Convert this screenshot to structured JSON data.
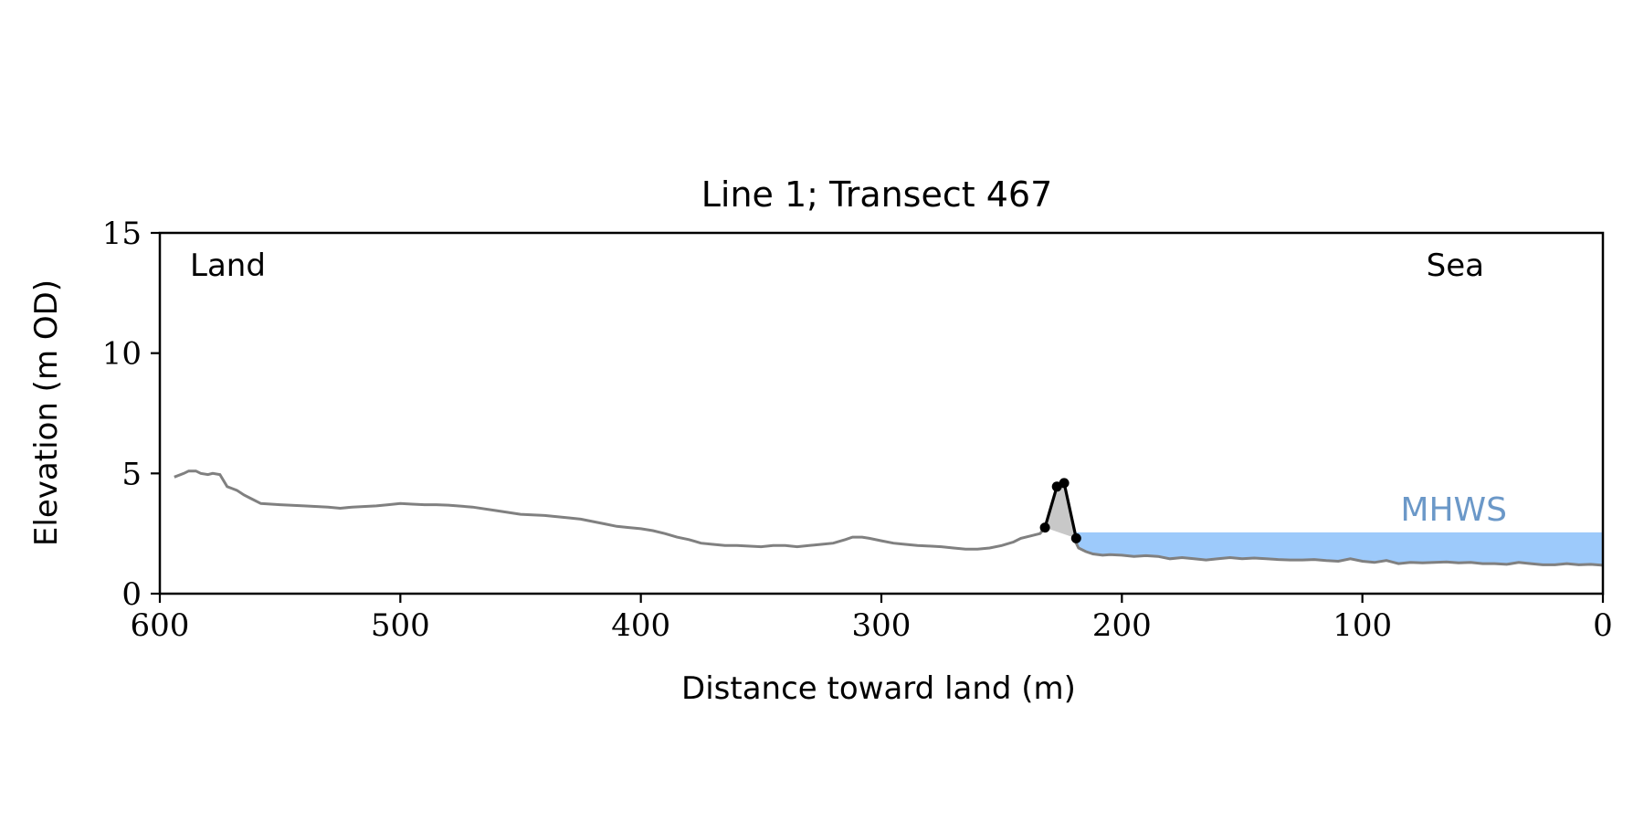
{
  "chart_data": {
    "type": "line",
    "title": "Line 1; Transect 467",
    "xlabel": "Distance toward land (m)",
    "ylabel": "Elevation (m OD)",
    "xlim": [
      600,
      0
    ],
    "ylim": [
      0,
      15
    ],
    "x_ticks": [
      600,
      500,
      400,
      300,
      200,
      100,
      0
    ],
    "y_ticks": [
      0,
      5,
      10,
      15
    ],
    "grid": false,
    "annotations": {
      "land_label": "Land",
      "sea_label": "Sea",
      "mhws_label": "MHWS"
    },
    "mhws_level": 2.55,
    "colors": {
      "profile": "#808080",
      "dune": "#000000",
      "dune_fill": "#c8c8c8",
      "water_fill": "#9dcafb",
      "mhws_text": "#6b98c8",
      "axes": "#000000"
    },
    "series": [
      {
        "role": "profile",
        "x": [
          594,
          590,
          588,
          585,
          583,
          580,
          578,
          575,
          572,
          568,
          565,
          562,
          558,
          550,
          540,
          530,
          525,
          520,
          510,
          505,
          500,
          495,
          490,
          485,
          480,
          470,
          460,
          450,
          440,
          430,
          425,
          420,
          415,
          410,
          405,
          400,
          395,
          390,
          385,
          380,
          375,
          370,
          365,
          360,
          350,
          345,
          340,
          335,
          330,
          325,
          320,
          315,
          312,
          308,
          305,
          300,
          295,
          290,
          285,
          280,
          275,
          270,
          265,
          260,
          255,
          250,
          245,
          242,
          238,
          234
        ],
        "y": [
          4.85,
          5.0,
          5.1,
          5.1,
          5.0,
          4.95,
          5.0,
          4.95,
          4.45,
          4.3,
          4.1,
          3.95,
          3.75,
          3.7,
          3.65,
          3.6,
          3.55,
          3.6,
          3.65,
          3.7,
          3.75,
          3.72,
          3.7,
          3.7,
          3.68,
          3.6,
          3.45,
          3.3,
          3.25,
          3.15,
          3.1,
          3.0,
          2.9,
          2.8,
          2.75,
          2.7,
          2.62,
          2.5,
          2.35,
          2.25,
          2.1,
          2.05,
          2.0,
          2.0,
          1.95,
          2.0,
          2.0,
          1.95,
          2.0,
          2.05,
          2.1,
          2.25,
          2.35,
          2.35,
          2.3,
          2.2,
          2.1,
          2.05,
          2.0,
          1.98,
          1.95,
          1.9,
          1.85,
          1.85,
          1.9,
          2.0,
          2.15,
          2.3,
          2.4,
          2.5
        ]
      },
      {
        "role": "seaward",
        "x": [
          220,
          218,
          215,
          212,
          208,
          205,
          200,
          195,
          190,
          185,
          180,
          175,
          170,
          165,
          160,
          155,
          150,
          145,
          140,
          135,
          130,
          125,
          120,
          115,
          110,
          105,
          100,
          95,
          90,
          85,
          80,
          75,
          70,
          65,
          60,
          55,
          50,
          45,
          40,
          35,
          30,
          25,
          20,
          15,
          10,
          5,
          0
        ],
        "y": [
          2.3,
          1.9,
          1.75,
          1.65,
          1.6,
          1.62,
          1.6,
          1.55,
          1.58,
          1.55,
          1.45,
          1.5,
          1.45,
          1.4,
          1.45,
          1.5,
          1.45,
          1.48,
          1.45,
          1.42,
          1.4,
          1.4,
          1.42,
          1.38,
          1.35,
          1.45,
          1.35,
          1.3,
          1.38,
          1.25,
          1.3,
          1.28,
          1.3,
          1.32,
          1.28,
          1.3,
          1.25,
          1.25,
          1.22,
          1.3,
          1.25,
          1.2,
          1.2,
          1.25,
          1.2,
          1.22,
          1.18
        ]
      },
      {
        "role": "dune",
        "x": [
          232,
          227,
          224,
          219
        ],
        "y": [
          2.75,
          4.45,
          4.6,
          2.3
        ],
        "markers": [
          true,
          true,
          true,
          true
        ]
      }
    ]
  }
}
